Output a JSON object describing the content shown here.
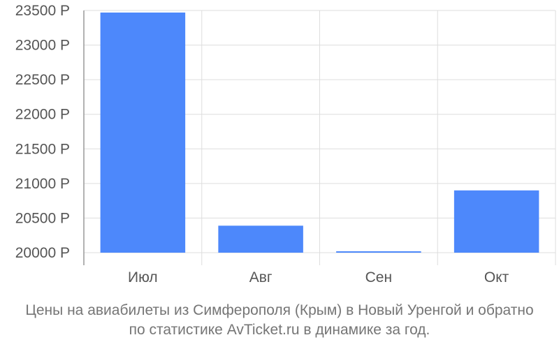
{
  "chart_data": {
    "type": "bar",
    "categories": [
      "Июл",
      "Авг",
      "Сен",
      "Окт"
    ],
    "values": [
      23470,
      20390,
      20020,
      20900
    ],
    "y_tick_labels": [
      "20000 Р",
      "20500 Р",
      "21000 Р",
      "21500 Р",
      "22000 Р",
      "22500 Р",
      "23000 Р",
      "23500 Р"
    ],
    "y_ticks": [
      20000,
      20500,
      21000,
      21500,
      22000,
      22500,
      23000,
      23500
    ],
    "ylim": [
      20000,
      23500
    ],
    "grid": true,
    "colors": {
      "bar": "#4d88fb",
      "grid": "#dddddd",
      "axis": "#999999",
      "tick_text": "#555555"
    }
  },
  "caption": {
    "line1": "Цены на авиабилеты из Симферополя (Крым) в Новый Уренгой и обратно",
    "line2": "по статистике AvTicket.ru в динамике за год."
  }
}
